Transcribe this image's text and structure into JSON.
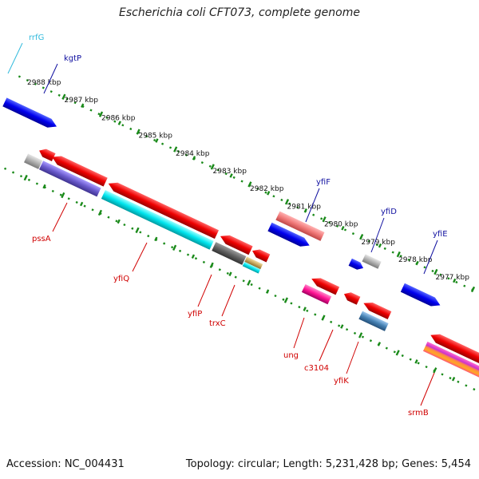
{
  "title": "Escherichia coli CFT073, complete genome",
  "footer": {
    "accession": "Accession: NC_004431",
    "summary": "Topology: circular; Length: 5,231,428 bp; Genes: 5,454"
  },
  "colors": {
    "backbone": "#808080",
    "ruler": "#1a8a1a",
    "forward_label": "#1010a0",
    "reverse_label": "#d00000",
    "rna_label": "#33bbdd"
  },
  "ruler_labels": [
    {
      "kbp": 2988,
      "label": "2988 kbp"
    },
    {
      "kbp": 2987,
      "label": "2987 kbp"
    },
    {
      "kbp": 2986,
      "label": "2986 kbp"
    },
    {
      "kbp": 2985,
      "label": "2985 kbp"
    },
    {
      "kbp": 2984,
      "label": "2984 kbp"
    },
    {
      "kbp": 2983,
      "label": "2983 kbp"
    },
    {
      "kbp": 2982,
      "label": "2982 kbp"
    },
    {
      "kbp": 2981,
      "label": "2981 kbp"
    },
    {
      "kbp": 2980,
      "label": "2980 kbp"
    },
    {
      "kbp": 2979,
      "label": "2979 kbp"
    },
    {
      "kbp": 2978,
      "label": "2978 kbp"
    },
    {
      "kbp": 2977,
      "label": "2977 kbp"
    }
  ],
  "genes": [
    {
      "name": "rrfG",
      "strand": "forward",
      "label_color": "#33bbdd"
    },
    {
      "name": "kgtP",
      "strand": "forward",
      "label_color": "#1010a0"
    },
    {
      "name": "yfiF",
      "strand": "forward",
      "label_color": "#1010a0"
    },
    {
      "name": "yfiD",
      "strand": "forward",
      "label_color": "#1010a0"
    },
    {
      "name": "yfiE",
      "strand": "forward",
      "label_color": "#1010a0"
    },
    {
      "name": "pssA",
      "strand": "reverse",
      "label_color": "#d00000"
    },
    {
      "name": "yfiQ",
      "strand": "reverse",
      "label_color": "#d00000"
    },
    {
      "name": "yfiP",
      "strand": "reverse",
      "label_color": "#d00000"
    },
    {
      "name": "trxC",
      "strand": "reverse",
      "label_color": "#d00000"
    },
    {
      "name": "ung",
      "strand": "reverse",
      "label_color": "#d00000"
    },
    {
      "name": "c3104",
      "strand": "reverse",
      "label_color": "#d00000"
    },
    {
      "name": "yfiK",
      "strand": "reverse",
      "label_color": "#d00000"
    },
    {
      "name": "srmB",
      "strand": "reverse",
      "label_color": "#d00000"
    }
  ]
}
